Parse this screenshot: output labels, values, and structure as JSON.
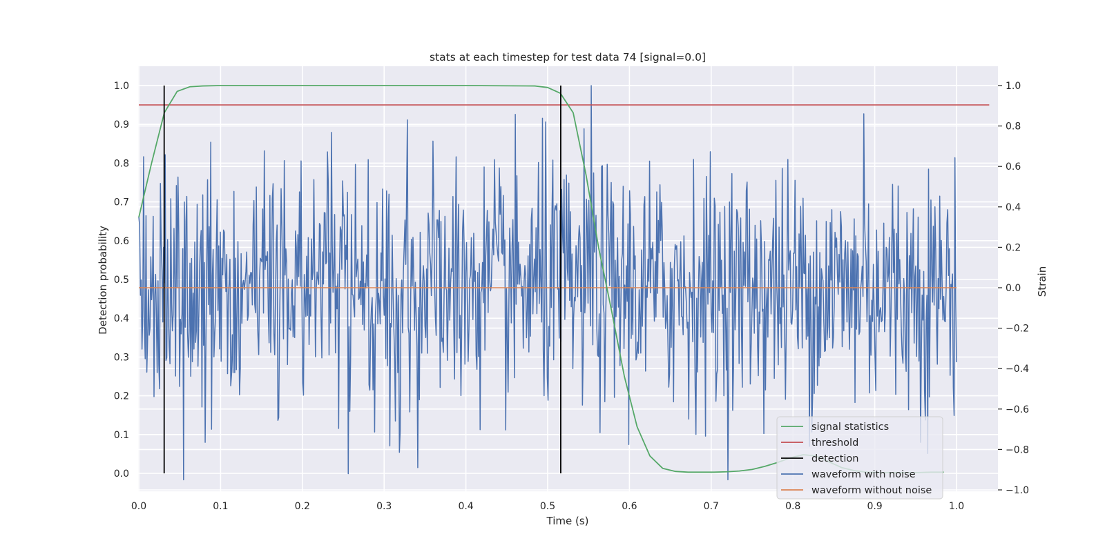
{
  "chart_data": {
    "type": "line",
    "title": "stats at each timestep for test data 74 [signal=0.0]",
    "xlabel": "Time (s)",
    "ylabel_left": "Detection probability",
    "ylabel_right": "Strain",
    "xlim": [
      0.0,
      1.05
    ],
    "ylim_left": [
      -0.045,
      1.045
    ],
    "ylim_right": [
      -1.0,
      1.0
    ],
    "x_ticks": [
      "0.0",
      "0.1",
      "0.2",
      "0.3",
      "0.4",
      "0.5",
      "0.6",
      "0.7",
      "0.8",
      "0.9",
      "1.0"
    ],
    "y_left_ticks": [
      "0.0",
      "0.1",
      "0.2",
      "0.3",
      "0.4",
      "0.5",
      "0.6",
      "0.7",
      "0.8",
      "0.9",
      "1.0"
    ],
    "y_right_ticks": [
      "1.0",
      "0.8",
      "0.6",
      "0.4",
      "0.2",
      "0.0",
      "−0.2",
      "−0.4",
      "−0.6",
      "−0.8",
      "−1.0"
    ],
    "grid": true,
    "legend_position": "lower-right",
    "series": [
      {
        "name": "signal statistics",
        "axis": "left",
        "color": "#55a868",
        "x": [
          0.0,
          0.0156,
          0.0312,
          0.0469,
          0.0625,
          0.0781,
          0.1,
          0.2,
          0.3,
          0.4,
          0.4844,
          0.5,
          0.5156,
          0.5312,
          0.5469,
          0.5625,
          0.5781,
          0.5938,
          0.6094,
          0.625,
          0.6406,
          0.6562,
          0.6719,
          0.6875,
          0.7031,
          0.7188,
          0.7344,
          0.75,
          0.7656,
          0.7812,
          0.7969,
          0.8125,
          0.8281,
          0.8438,
          0.8594,
          0.875,
          0.8906,
          0.9062,
          0.9219,
          0.9375,
          0.9531,
          0.9688,
          0.9844
        ],
        "values": [
          0.66,
          0.8,
          0.93,
          0.985,
          0.997,
          0.999,
          1.0,
          1.0,
          1.0,
          1.0,
          0.999,
          0.995,
          0.98,
          0.93,
          0.77,
          0.58,
          0.42,
          0.25,
          0.12,
          0.045,
          0.013,
          0.005,
          0.003,
          0.003,
          0.003,
          0.004,
          0.006,
          0.01,
          0.018,
          0.028,
          0.04,
          0.048,
          0.045,
          0.03,
          0.015,
          0.007,
          0.003,
          0.002,
          0.002,
          0.002,
          0.002,
          0.003,
          0.003
        ]
      },
      {
        "name": "threshold",
        "axis": "left",
        "color": "#c44e52",
        "x": [
          0.0,
          1.04
        ],
        "values": [
          0.95,
          0.95
        ]
      },
      {
        "name": "detection",
        "axis": "left",
        "color": "#000000",
        "segments": [
          {
            "x": 0.031,
            "y0": 0.0,
            "y1": 1.0
          },
          {
            "x": 0.516,
            "y0": 0.0,
            "y1": 1.0
          }
        ]
      },
      {
        "name": "waveform with noise",
        "axis": "right",
        "color": "#4c72b0",
        "x_start": 0.0,
        "x_end": 1.0,
        "n_points": 1024,
        "noise_std": 0.3,
        "notable_points": [
          {
            "x": 0.256,
            "y": -0.92
          },
          {
            "x": 0.328,
            "y": 0.83
          },
          {
            "x": 0.341,
            "y": -0.89
          },
          {
            "x": 0.498,
            "y": 0.82
          },
          {
            "x": 0.553,
            "y": 1.0
          },
          {
            "x": 0.887,
            "y": 0.86
          },
          {
            "x": 0.965,
            "y": -0.82
          }
        ]
      },
      {
        "name": "waveform without noise",
        "axis": "right",
        "color": "#dd8452",
        "x": [
          0.0,
          1.0
        ],
        "values": [
          0.0,
          0.0
        ]
      }
    ]
  }
}
